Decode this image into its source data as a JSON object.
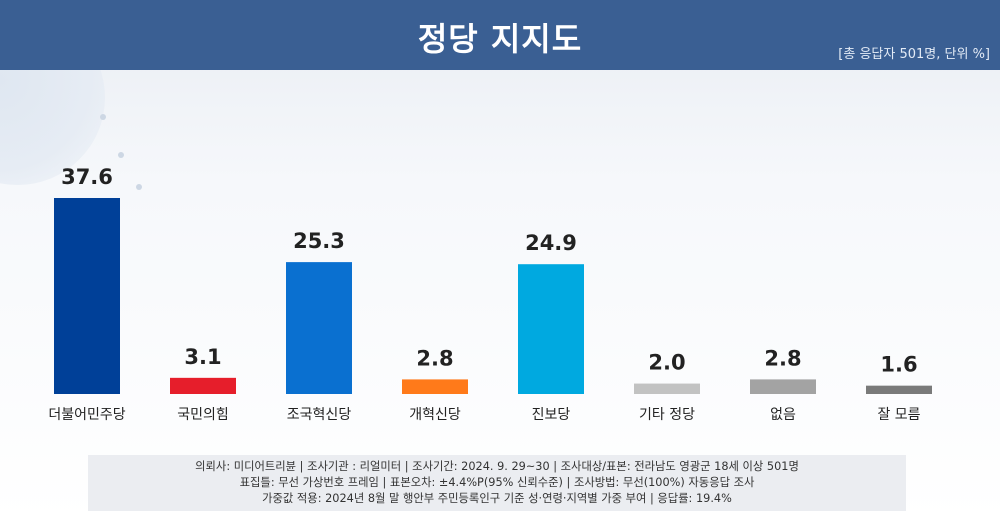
{
  "header": {
    "title": "정당 지지도",
    "unit_note": "[총 응답자 501명, 단위 %]"
  },
  "colors": {
    "header_bg": "#3a5f93"
  },
  "chart_data": {
    "type": "bar",
    "title": "정당 지지도",
    "unit": "%",
    "categories": [
      "더불어민주당",
      "국민의힘",
      "조국혁신당",
      "개혁신당",
      "진보당",
      "기타 정당",
      "없음",
      "잘 모름"
    ],
    "values": [
      37.6,
      3.1,
      25.3,
      2.8,
      24.9,
      2.0,
      2.8,
      1.6
    ],
    "value_labels": [
      "37.6",
      "3.1",
      "25.3",
      "2.8",
      "24.9",
      "2.0",
      "2.8",
      "1.6"
    ],
    "colors": [
      "#004098",
      "#e61e2b",
      "#0a70d0",
      "#ff7a1a",
      "#00a9e0",
      "#c2c2c2",
      "#a3a3a3",
      "#7a7a7a"
    ],
    "ylim": [
      0,
      40
    ],
    "grid": false,
    "legend": "none",
    "xlabel": "",
    "ylabel": ""
  },
  "footer": {
    "line1": "의뢰사: 미디어트리뷴 | 조사기관 : 리얼미터 | 조사기간: 2024. 9. 29~30 | 조사대상/표본: 전라남도 영광군 18세 이상 501명",
    "line2": "표집틀: 무선 가상번호 프레임 | 표본오차: ±4.4%P(95% 신뢰수준) | 조사방법: 무선(100%) 자동응답 조사",
    "line3": "가중값 적용: 2024년 8월 말 행안부 주민등록인구 기준 성·연령·지역별 가중 부여 | 응답률: 19.4%"
  }
}
